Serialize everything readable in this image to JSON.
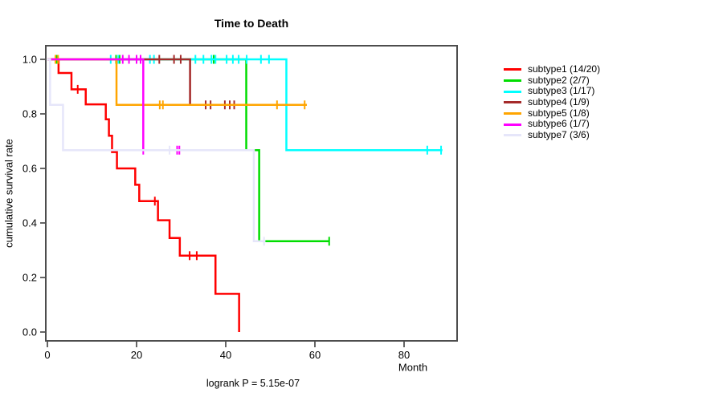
{
  "chart_data": {
    "type": "line",
    "subtype": "kaplan-meier-step",
    "title": "Time to Death",
    "xlabel": "Month",
    "ylabel": "cumulative survival rate",
    "footnote": "logrank P = 5.15e-07",
    "xlim": [
      0,
      92
    ],
    "ylim": [
      0,
      1
    ],
    "xticks": [
      0,
      20,
      40,
      60,
      80
    ],
    "ytick_labels": [
      "0.0",
      "0.2",
      "0.4",
      "0.6",
      "0.8",
      "1.0"
    ],
    "yticks": [
      0.0,
      0.2,
      0.4,
      0.6,
      0.8,
      1.0
    ],
    "grid": false,
    "legend_position": "right",
    "axis_color": "#4d4d4d",
    "series": [
      {
        "name": "subtype1",
        "label": "subtype1 (14/20)",
        "color": "#ff0000",
        "steps": [
          [
            0,
            1.0
          ],
          [
            2.5,
            0.95
          ],
          [
            5.4,
            0.89
          ],
          [
            8.6,
            0.835
          ],
          [
            13.1,
            0.78
          ],
          [
            13.8,
            0.72
          ],
          [
            14.5,
            0.66
          ],
          [
            15.6,
            0.6
          ],
          [
            19.7,
            0.54
          ],
          [
            20.6,
            0.48
          ],
          [
            24.8,
            0.41
          ],
          [
            27.4,
            0.345
          ],
          [
            29.7,
            0.28
          ],
          [
            37.7,
            0.14
          ],
          [
            43,
            0.0
          ]
        ],
        "end": 43,
        "censors": [
          [
            6.8,
            0.89
          ],
          [
            24.1,
            0.48
          ],
          [
            31.9,
            0.28
          ],
          [
            33.5,
            0.28
          ]
        ]
      },
      {
        "name": "subtype2",
        "label": "subtype2 (2/7)",
        "color": "#00dd00",
        "steps": [
          [
            0,
            1.0
          ],
          [
            44.6,
            0.667
          ],
          [
            47.5,
            0.333
          ]
        ],
        "end": 63.3,
        "censors": [
          [
            2.1,
            1.0
          ],
          [
            15.4,
            1.0
          ],
          [
            16.2,
            1.0
          ],
          [
            37.3,
            1.0
          ],
          [
            63.2,
            0.333
          ]
        ]
      },
      {
        "name": "subtype3",
        "label": "subtype3 (1/17)",
        "color": "#00ffff",
        "steps": [
          [
            0,
            1.0
          ],
          [
            53.6,
            0.667
          ]
        ],
        "end": 88.6,
        "censors": [
          [
            14.2,
            1.0
          ],
          [
            15.9,
            1.0
          ],
          [
            23.0,
            1.0
          ],
          [
            23.9,
            1.0
          ],
          [
            33.2,
            1.0
          ],
          [
            35.0,
            1.0
          ],
          [
            36.8,
            1.0
          ],
          [
            37.7,
            1.0
          ],
          [
            40.2,
            1.0
          ],
          [
            41.6,
            1.0
          ],
          [
            42.9,
            1.0
          ],
          [
            44.7,
            1.0
          ],
          [
            47.9,
            1.0
          ],
          [
            49.7,
            1.0
          ],
          [
            85.2,
            0.667
          ],
          [
            88.3,
            0.667
          ]
        ]
      },
      {
        "name": "subtype4",
        "label": "subtype4 (1/9)",
        "color": "#a52a2a",
        "steps": [
          [
            0,
            1.0
          ],
          [
            32,
            0.833
          ]
        ],
        "end": 42.5,
        "censors": [
          [
            25.1,
            1.0
          ],
          [
            28.4,
            1.0
          ],
          [
            29.9,
            1.0
          ],
          [
            35.5,
            0.833
          ],
          [
            36.6,
            0.833
          ],
          [
            39.8,
            0.833
          ],
          [
            40.9,
            0.833
          ],
          [
            41.9,
            0.833
          ]
        ]
      },
      {
        "name": "subtype5",
        "label": "subtype5 (1/8)",
        "color": "#ffa500",
        "steps": [
          [
            0,
            1.0
          ],
          [
            15.5,
            0.833
          ]
        ],
        "end": 58.2,
        "censors": [
          [
            1.8,
            1.0
          ],
          [
            2.4,
            1.0
          ],
          [
            25.2,
            0.833
          ],
          [
            25.9,
            0.833
          ],
          [
            51.5,
            0.833
          ],
          [
            57.7,
            0.833
          ]
        ]
      },
      {
        "name": "subtype6",
        "label": "subtype6 (1/7)",
        "color": "#ff00ff",
        "steps": [
          [
            0,
            1.0
          ],
          [
            21.5,
            0.667
          ]
        ],
        "end": 29.8,
        "censors": [
          [
            16.9,
            1.0
          ],
          [
            18.3,
            1.0
          ],
          [
            20.0,
            1.0
          ],
          [
            20.9,
            1.0
          ],
          [
            21.5,
            0.667
          ],
          [
            29.1,
            0.667
          ],
          [
            29.6,
            0.667
          ]
        ]
      },
      {
        "name": "subtype7",
        "label": "subtype7 (3/6)",
        "color": "#e6e6fa",
        "steps": [
          [
            0,
            1.0
          ],
          [
            0.6,
            0.833
          ],
          [
            3.5,
            0.667
          ],
          [
            46.3,
            0.333
          ]
        ],
        "end": 48.9,
        "censors": [
          [
            27.4,
            0.667
          ],
          [
            48.6,
            0.333
          ]
        ]
      }
    ]
  }
}
